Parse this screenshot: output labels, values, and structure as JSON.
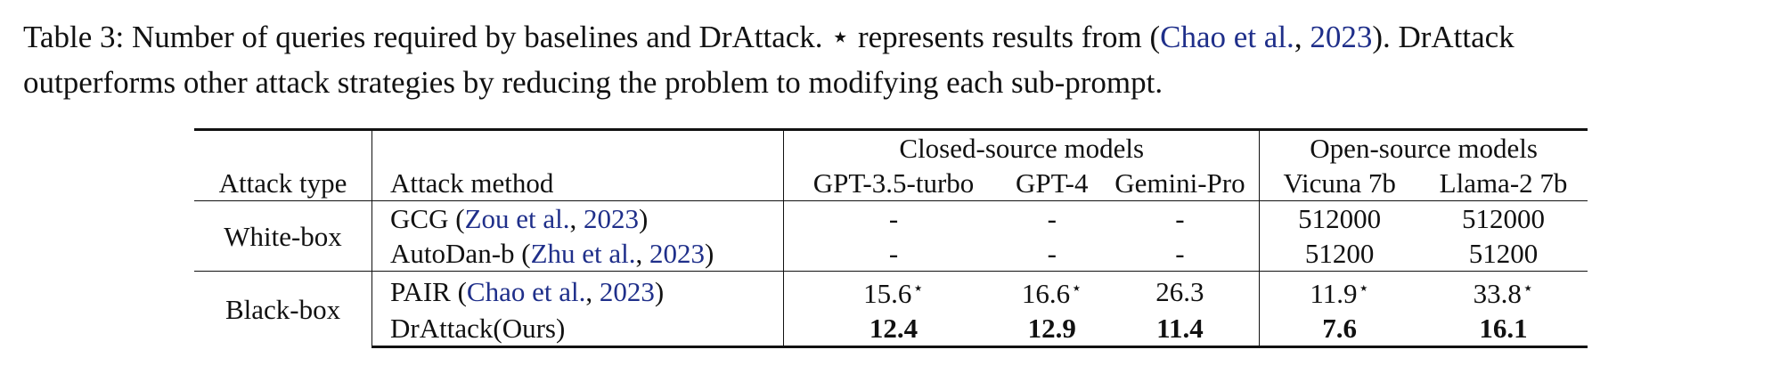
{
  "caption": {
    "label": "Table 3:",
    "text_before_star": "Number of queries required by baselines and DrAttack.",
    "star_symbol": "⋆",
    "text_after_star": "represents results from (",
    "cite_name": "Chao et al.",
    "cite_sep": ", ",
    "cite_year": "2023",
    "text_after_cite": "). DrAttack",
    "line2": "outperforms other attack strategies by reducing the problem to modifying each sub-prompt."
  },
  "table": {
    "group_headers": {
      "closed": "Closed-source models",
      "open": "Open-source models"
    },
    "columns": {
      "attack_type": "Attack type",
      "attack_method": "Attack method",
      "gpt35": "GPT-3.5-turbo",
      "gpt4": "GPT-4",
      "gemini": "Gemini-Pro",
      "vicuna": "Vicuna 7b",
      "llama": "Llama-2 7b"
    },
    "groups": [
      {
        "type": "White-box",
        "rows": [
          {
            "method": "GCG",
            "cite_open": " (",
            "cite_name": "Zou et al.",
            "cite_sep": ", ",
            "cite_year": "2023",
            "cite_close": ")",
            "gpt35": "-",
            "gpt4": "-",
            "gemini": "-",
            "vicuna": "512000",
            "llama": "512000"
          },
          {
            "method": "AutoDan-b",
            "cite_open": " (",
            "cite_name": "Zhu et al.",
            "cite_sep": ", ",
            "cite_year": "2023",
            "cite_close": ")",
            "gpt35": "-",
            "gpt4": "-",
            "gemini": "-",
            "vicuna": "51200",
            "llama": "51200"
          }
        ]
      },
      {
        "type": "Black-box",
        "rows": [
          {
            "method": "PAIR",
            "cite_open": " (",
            "cite_name": "Chao et al.",
            "cite_sep": ", ",
            "cite_year": "2023",
            "cite_close": ")",
            "gpt35": "15.6",
            "gpt35_star": "⋆",
            "gpt4": "16.6",
            "gpt4_star": "⋆",
            "gemini": "26.3",
            "vicuna": "11.9",
            "vicuna_star": "⋆",
            "llama": "33.8",
            "llama_star": "⋆"
          },
          {
            "method": "DrAttack(Ours)",
            "gpt35": "12.4",
            "gpt4": "12.9",
            "gemini": "11.4",
            "vicuna": "7.6",
            "llama": "16.1"
          }
        ]
      }
    ]
  }
}
